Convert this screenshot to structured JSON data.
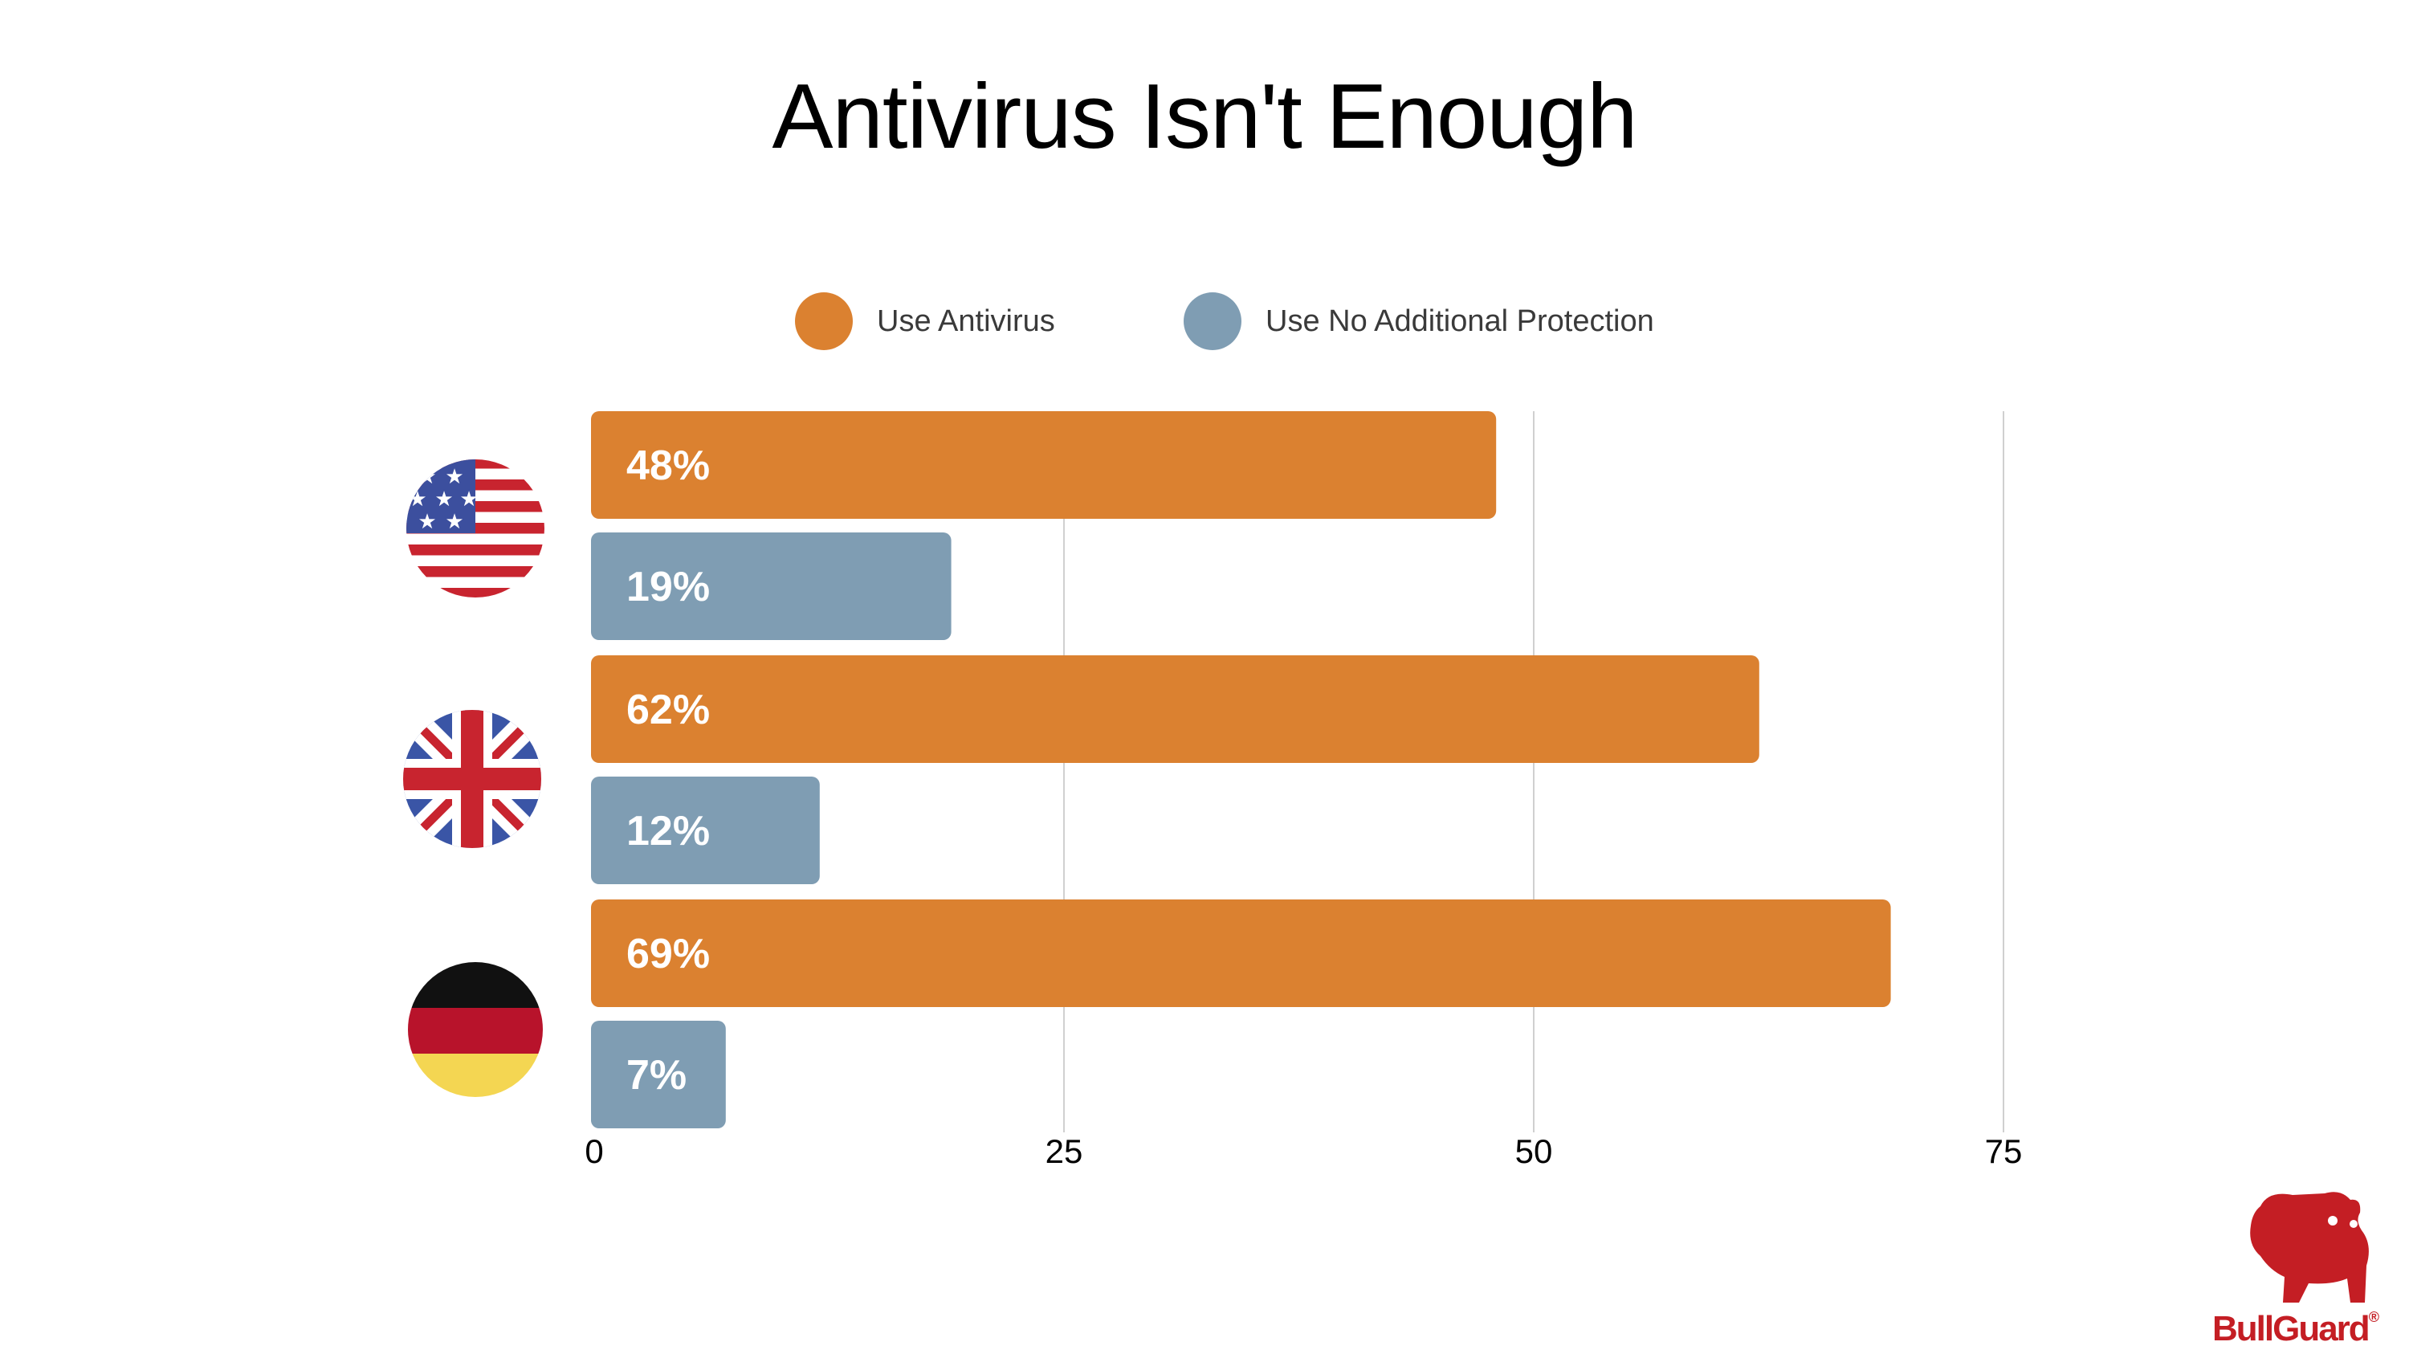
{
  "chart_data": {
    "type": "bar",
    "orientation": "horizontal",
    "title": "Antivirus Isn't Enough",
    "categories": [
      "us-flag-icon",
      "uk-flag-icon",
      "germany-flag-icon"
    ],
    "series": [
      {
        "name": "Use Antivirus",
        "color": "#db8130",
        "values": [
          48,
          62,
          69
        ],
        "labels": [
          "48%",
          "62%",
          "69%"
        ]
      },
      {
        "name": "Use No Additional Protection",
        "color": "#7f9db3",
        "values": [
          19,
          12,
          7
        ],
        "labels": [
          "19%",
          "12%",
          "7%"
        ]
      }
    ],
    "xlim": [
      0,
      75
    ],
    "xticks": [
      0,
      25,
      50,
      75
    ],
    "xtick_labels": [
      "0",
      "25",
      "50",
      "75"
    ],
    "grid": true,
    "legend_position": "top-center"
  },
  "logo": {
    "name": "bulldog-logo-icon",
    "text": "BullGuard",
    "mark": "®",
    "color": "#c41e24"
  }
}
